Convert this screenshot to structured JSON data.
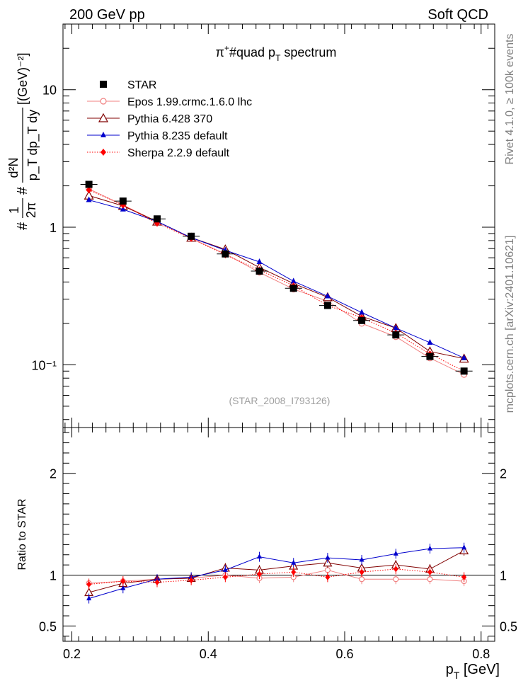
{
  "header": {
    "left": "200 GeV pp",
    "right": "Soft QCD"
  },
  "side_labels": {
    "rivet": "Rivet 4.1.0, ≥ 100k events",
    "mcplots": "mcplots.cern.ch [arXiv:2401.10621]"
  },
  "chart_data": {
    "type": "line",
    "title": "π⁺#quad p_T spectrum",
    "title_parts": {
      "main": "π",
      "sup": "+",
      "mid": "#quad p",
      "sub": "T",
      "tail": " spectrum"
    },
    "watermark": "(STAR_2008_I793126)",
    "xlabel": "p_T [GeV]",
    "xlabel_parts": {
      "main": "p",
      "sub": "T",
      "tail": " [GeV]"
    },
    "ylabel": "#1/2π #d²N/p_T dp_T dy [(GeV)⁻²]",
    "ylabel_parts": {
      "hash": "#",
      "one": "1",
      "twopi": "2π",
      "hash2": "#",
      "numerator": "d²N",
      "denominator": "p_T dp_T dy",
      "units": "[(GeV)⁻²]"
    },
    "ratio_ylabel": "Ratio to STAR",
    "xlim": [
      0.187,
      0.82
    ],
    "ylim": [
      0.035,
      30
    ],
    "ratio_ylim": [
      0.35,
      2.45
    ],
    "xticks": [
      0.2,
      0.4,
      0.6,
      0.8
    ],
    "xtick_labels": [
      "0.2",
      "0.4",
      "0.6",
      "0.8"
    ],
    "yticks": [
      0.1,
      1,
      10
    ],
    "ytick_labels": [
      "10⁻¹",
      "1",
      "10"
    ],
    "ratio_yticks": [
      0.5,
      1,
      2
    ],
    "ratio_ytick_labels": [
      "0.5",
      "1",
      "2"
    ],
    "x": [
      0.225,
      0.275,
      0.325,
      0.375,
      0.425,
      0.475,
      0.525,
      0.575,
      0.625,
      0.675,
      0.725,
      0.775
    ],
    "series": [
      {
        "name": "STAR",
        "color": "#000000",
        "marker": "square",
        "line": "none",
        "values": [
          2.05,
          1.55,
          1.15,
          0.86,
          0.64,
          0.48,
          0.36,
          0.27,
          0.21,
          0.165,
          0.115,
          0.09
        ],
        "ratio": [
          1,
          1,
          1,
          1,
          1,
          1,
          1,
          1,
          1,
          1,
          1,
          1
        ]
      },
      {
        "name": "Epos 1.99.crmc.1.6.0 lhc",
        "color": "#f08080",
        "marker": "open-circle",
        "line": "solid",
        "values": [
          1.9,
          1.45,
          1.1,
          0.83,
          0.64,
          0.47,
          0.355,
          0.29,
          0.2,
          0.16,
          0.112,
          0.085
        ],
        "ratio": [
          0.92,
          0.94,
          0.96,
          0.97,
          1.0,
          0.97,
          0.98,
          1.05,
          0.96,
          0.96,
          0.96,
          0.94
        ]
      },
      {
        "name": "Pythia 6.428 370",
        "color": "#800000",
        "marker": "open-triangle",
        "line": "solid",
        "values": [
          1.7,
          1.43,
          1.1,
          0.84,
          0.69,
          0.51,
          0.39,
          0.31,
          0.225,
          0.185,
          0.125,
          0.111
        ],
        "ratio": [
          0.83,
          0.92,
          0.96,
          0.97,
          1.07,
          1.05,
          1.09,
          1.12,
          1.07,
          1.1,
          1.06,
          1.24
        ]
      },
      {
        "name": "Pythia 8.235 default",
        "color": "#0000cd",
        "marker": "filled-triangle",
        "line": "solid",
        "values": [
          1.58,
          1.35,
          1.1,
          0.84,
          0.68,
          0.56,
          0.405,
          0.315,
          0.24,
          0.185,
          0.145,
          0.112
        ],
        "ratio": [
          0.77,
          0.87,
          0.96,
          0.98,
          1.05,
          1.18,
          1.12,
          1.17,
          1.15,
          1.21,
          1.26,
          1.27
        ]
      },
      {
        "name": "Sherpa 2.2.9 default",
        "color": "#ff0000",
        "marker": "filled-diamond",
        "line": "dotted",
        "values": [
          1.87,
          1.45,
          1.07,
          0.83,
          0.63,
          0.49,
          0.375,
          0.27,
          0.22,
          0.17,
          0.12,
          0.09
        ],
        "ratio": [
          0.91,
          0.94,
          0.93,
          0.95,
          0.98,
          1.01,
          1.03,
          0.98,
          1.03,
          1.06,
          1.03,
          0.98
        ]
      }
    ]
  }
}
